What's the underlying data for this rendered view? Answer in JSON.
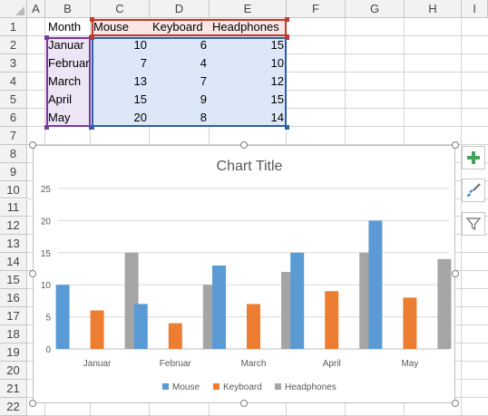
{
  "columns": [
    "A",
    "B",
    "C",
    "D",
    "E",
    "F",
    "G",
    "H",
    "I"
  ],
  "rows": [
    "1",
    "2",
    "3",
    "4",
    "5",
    "6",
    "7",
    "8",
    "9",
    "10",
    "11",
    "12",
    "13",
    "14",
    "15",
    "16",
    "17",
    "18",
    "19",
    "20",
    "21",
    "22"
  ],
  "table": {
    "headers": [
      "Month",
      "Mouse",
      "Keyboard",
      "Headphones"
    ],
    "rows": [
      [
        "Januar",
        "10",
        "6",
        "15"
      ],
      [
        "Februar",
        "7",
        "4",
        "10"
      ],
      [
        "March",
        "13",
        "7",
        "12"
      ],
      [
        "April",
        "15",
        "9",
        "15"
      ],
      [
        "May",
        "20",
        "8",
        "14"
      ]
    ]
  },
  "chart_data": {
    "type": "bar",
    "title": "Chart Title",
    "categories": [
      "Januar",
      "Februar",
      "March",
      "April",
      "May"
    ],
    "series": [
      {
        "name": "Mouse",
        "values": [
          10,
          7,
          13,
          15,
          20
        ],
        "color": "#5b9bd5"
      },
      {
        "name": "Keyboard",
        "values": [
          6,
          4,
          7,
          9,
          8
        ],
        "color": "#ed7d31"
      },
      {
        "name": "Headphones",
        "values": [
          15,
          10,
          12,
          15,
          14
        ],
        "color": "#a5a5a5"
      }
    ],
    "ylim": [
      0,
      25
    ],
    "yticks": [
      "0",
      "5",
      "10",
      "15",
      "20",
      "25"
    ],
    "grid": true,
    "legend": "bottom"
  },
  "side_buttons": [
    "plus-icon",
    "brush-icon",
    "filter-icon"
  ]
}
